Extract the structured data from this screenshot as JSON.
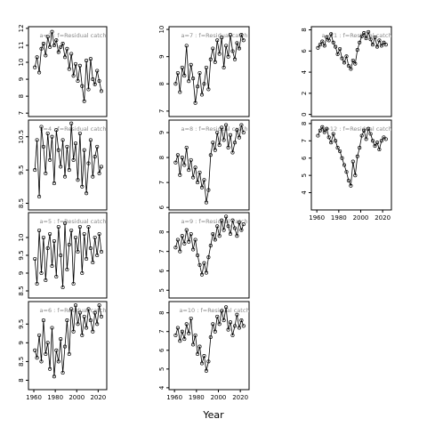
{
  "figure": {
    "xlabel": "Year"
  },
  "chart_data": [
    {
      "type": "line",
      "title": "a=3 : f=Residual catch",
      "ylim": [
        6.8,
        12.1
      ],
      "yticks": [
        7,
        8,
        9,
        10,
        11,
        12
      ],
      "xticks": [],
      "x": [
        1961,
        1963,
        1965,
        1967,
        1969,
        1971,
        1973,
        1975,
        1977,
        1979,
        1981,
        1983,
        1985,
        1987,
        1989,
        1991,
        1993,
        1995,
        1997,
        1999,
        2001,
        2003,
        2005,
        2007,
        2009,
        2011,
        2013,
        2015,
        2017,
        2019,
        2021,
        2023
      ],
      "values": [
        9.7,
        10.3,
        9.4,
        10.8,
        11.1,
        10.4,
        11.5,
        10.9,
        11.8,
        11.0,
        11.3,
        10.6,
        10.9,
        11.1,
        10.3,
        10.8,
        9.6,
        10.5,
        9.2,
        9.9,
        8.9,
        9.8,
        8.6,
        7.7,
        10.1,
        8.4,
        10.2,
        9.0,
        8.7,
        9.5,
        8.9,
        8.3
      ]
    },
    {
      "type": "line",
      "title": "a=4 : f=Residual catch",
      "ylim": [
        8.3,
        11.0
      ],
      "yticks": [
        8.5,
        9.5,
        10.5
      ],
      "xticks": [],
      "x": [
        1961,
        1963,
        1965,
        1967,
        1969,
        1971,
        1973,
        1975,
        1977,
        1979,
        1981,
        1983,
        1985,
        1987,
        1989,
        1991,
        1993,
        1995,
        1997,
        1999,
        2001,
        2003,
        2005,
        2007,
        2009,
        2011,
        2013,
        2015,
        2017,
        2019,
        2021,
        2023
      ],
      "values": [
        9.5,
        10.4,
        8.7,
        10.8,
        10.2,
        9.4,
        10.6,
        9.8,
        10.5,
        9.1,
        10.7,
        10.1,
        9.6,
        10.4,
        9.3,
        10.2,
        9.5,
        10.9,
        9.8,
        10.3,
        9.2,
        10.6,
        9.0,
        10.1,
        8.8,
        9.7,
        10.4,
        9.3,
        9.9,
        10.2,
        9.4,
        9.6
      ]
    },
    {
      "type": "line",
      "title": "a=5 : f=Residual catch",
      "ylim": [
        8.3,
        10.7
      ],
      "yticks": [
        8.5,
        9.0,
        9.5,
        10.0
      ],
      "xticks": [],
      "x": [
        1961,
        1963,
        1965,
        1967,
        1969,
        1971,
        1973,
        1975,
        1977,
        1979,
        1981,
        1983,
        1985,
        1987,
        1989,
        1991,
        1993,
        1995,
        1997,
        1999,
        2001,
        2003,
        2005,
        2007,
        2009,
        2011,
        2013,
        2015,
        2017,
        2019,
        2021,
        2023
      ],
      "values": [
        9.4,
        8.7,
        10.2,
        9.0,
        10.0,
        8.8,
        9.7,
        10.1,
        9.2,
        9.9,
        8.9,
        10.3,
        9.5,
        8.6,
        10.4,
        9.1,
        9.8,
        10.2,
        8.7,
        10.0,
        9.6,
        10.3,
        9.0,
        10.1,
        9.4,
        10.3,
        9.7,
        9.3,
        10.0,
        9.5,
        10.1,
        9.6
      ]
    },
    {
      "type": "line",
      "title": "a=6 : f=Residual catch",
      "ylim": [
        7.75,
        10.1
      ],
      "yticks": [
        8.0,
        8.5,
        9.0,
        9.5
      ],
      "xticks": [
        1960,
        1980,
        2000,
        2020
      ],
      "x": [
        1961,
        1963,
        1965,
        1967,
        1969,
        1971,
        1973,
        1975,
        1977,
        1979,
        1981,
        1983,
        1985,
        1987,
        1989,
        1991,
        1993,
        1995,
        1997,
        1999,
        2001,
        2003,
        2005,
        2007,
        2009,
        2011,
        2013,
        2015,
        2017,
        2019,
        2021,
        2023
      ],
      "values": [
        8.8,
        8.6,
        9.2,
        8.5,
        9.6,
        8.7,
        9.0,
        8.3,
        9.4,
        8.1,
        8.8,
        8.5,
        9.1,
        8.2,
        8.9,
        9.6,
        8.7,
        9.9,
        9.3,
        10.0,
        9.5,
        9.8,
        9.2,
        9.7,
        9.4,
        9.9,
        9.6,
        9.3,
        9.8,
        9.5,
        10.0,
        9.7
      ]
    },
    {
      "type": "line",
      "title": "a=7 : f=Residual catch",
      "ylim": [
        6.8,
        10.1
      ],
      "yticks": [
        7.0,
        8.0,
        9.0,
        10.0
      ],
      "xticks": [],
      "x": [
        1961,
        1963,
        1965,
        1967,
        1969,
        1971,
        1973,
        1975,
        1977,
        1979,
        1981,
        1983,
        1985,
        1987,
        1989,
        1991,
        1993,
        1995,
        1997,
        1999,
        2001,
        2003,
        2005,
        2007,
        2009,
        2011,
        2013,
        2015,
        2017,
        2019,
        2021,
        2023
      ],
      "values": [
        8.0,
        8.4,
        7.7,
        8.6,
        8.3,
        9.4,
        8.1,
        8.7,
        8.2,
        7.3,
        7.9,
        8.4,
        7.6,
        8.0,
        8.6,
        7.8,
        8.9,
        9.3,
        8.8,
        9.6,
        9.1,
        9.7,
        8.6,
        9.4,
        9.0,
        9.8,
        9.2,
        8.9,
        9.5,
        9.3,
        9.8,
        9.6
      ]
    },
    {
      "type": "line",
      "title": "a=8 : f=Residual catch",
      "ylim": [
        5.9,
        9.5
      ],
      "yticks": [
        6.0,
        7.0,
        8.0,
        9.0
      ],
      "xticks": [],
      "x": [
        1961,
        1963,
        1965,
        1967,
        1969,
        1971,
        1973,
        1975,
        1977,
        1979,
        1981,
        1983,
        1985,
        1987,
        1989,
        1991,
        1993,
        1995,
        1997,
        1999,
        2001,
        2003,
        2005,
        2007,
        2009,
        2011,
        2013,
        2015,
        2017,
        2019,
        2021,
        2023
      ],
      "values": [
        7.8,
        8.1,
        7.3,
        8.0,
        7.7,
        8.4,
        7.5,
        7.9,
        7.2,
        7.6,
        7.0,
        7.4,
        6.8,
        7.1,
        6.2,
        6.7,
        8.1,
        8.6,
        8.3,
        9.0,
        8.5,
        9.2,
        8.7,
        9.3,
        8.4,
        8.9,
        8.2,
        8.6,
        9.1,
        8.8,
        9.3,
        9.0
      ]
    },
    {
      "type": "line",
      "title": "a=9 : f=Residual catch",
      "ylim": [
        4.6,
        9.0
      ],
      "yticks": [
        5,
        6,
        7,
        8
      ],
      "xticks": [],
      "x": [
        1961,
        1963,
        1965,
        1967,
        1969,
        1971,
        1973,
        1975,
        1977,
        1979,
        1981,
        1983,
        1985,
        1987,
        1989,
        1991,
        1993,
        1995,
        1997,
        1999,
        2001,
        2003,
        2005,
        2007,
        2009,
        2011,
        2013,
        2015,
        2017,
        2019,
        2021,
        2023
      ],
      "values": [
        7.2,
        7.6,
        7.0,
        7.8,
        7.4,
        8.1,
        7.5,
        7.9,
        7.1,
        7.6,
        6.8,
        6.3,
        5.8,
        6.4,
        5.9,
        6.7,
        7.3,
        7.9,
        7.6,
        8.3,
        7.8,
        8.6,
        8.1,
        8.8,
        8.3,
        7.9,
        8.6,
        8.2,
        7.8,
        8.5,
        8.1,
        8.4
      ]
    },
    {
      "type": "line",
      "title": "a=10 : f=Residual catch",
      "ylim": [
        3.9,
        8.6
      ],
      "yticks": [
        4,
        5,
        6,
        7,
        8
      ],
      "xticks": [
        1960,
        1980,
        2000,
        2020
      ],
      "x": [
        1961,
        1963,
        1965,
        1967,
        1969,
        1971,
        1973,
        1975,
        1977,
        1979,
        1981,
        1983,
        1985,
        1987,
        1989,
        1991,
        1993,
        1995,
        1997,
        1999,
        2001,
        2003,
        2005,
        2007,
        2009,
        2011,
        2013,
        2015,
        2017,
        2019,
        2021,
        2023
      ],
      "values": [
        6.8,
        7.2,
        6.5,
        7.0,
        6.6,
        7.4,
        6.9,
        7.7,
        6.3,
        6.8,
        5.8,
        6.2,
        5.3,
        5.7,
        4.9,
        5.4,
        6.7,
        7.4,
        7.0,
        7.8,
        7.4,
        8.1,
        7.6,
        8.3,
        7.1,
        7.5,
        6.8,
        7.3,
        7.9,
        7.2,
        7.6,
        7.3
      ]
    },
    {
      "type": "line",
      "title": "a=11 : f=Residual catch",
      "ylim": [
        -0.2,
        8.3
      ],
      "yticks": [
        0,
        2,
        4,
        6,
        8
      ],
      "xticks": [],
      "x": [
        1961,
        1963,
        1965,
        1967,
        1969,
        1971,
        1973,
        1975,
        1977,
        1979,
        1981,
        1983,
        1985,
        1987,
        1989,
        1991,
        1993,
        1995,
        1997,
        1999,
        2001,
        2003,
        2005,
        2007,
        2009,
        2011,
        2013,
        2015,
        2017,
        2019,
        2021,
        2023
      ],
      "values": [
        6.3,
        6.6,
        6.9,
        6.5,
        7.3,
        7.0,
        7.6,
        6.8,
        6.4,
        5.7,
        6.2,
        5.3,
        4.9,
        5.5,
        4.6,
        4.3,
        5.1,
        4.8,
        6.1,
        6.8,
        7.4,
        7.7,
        7.2,
        7.8,
        7.1,
        6.6,
        7.3,
        6.4,
        7.0,
        6.5,
        6.8,
        6.6
      ]
    },
    {
      "type": "line",
      "title": "a=12 : f=Residual catch",
      "ylim": [
        3.0,
        8.2
      ],
      "yticks": [
        4,
        5,
        6,
        7,
        8
      ],
      "xticks": [
        1960,
        1980,
        2000,
        2020
      ],
      "x": [
        1961,
        1963,
        1965,
        1967,
        1969,
        1971,
        1973,
        1975,
        1977,
        1979,
        1981,
        1983,
        1985,
        1987,
        1989,
        1991,
        1993,
        1995,
        1997,
        1999,
        2001,
        2003,
        2005,
        2007,
        2009,
        2011,
        2013,
        2015,
        2017,
        2019,
        2021,
        2023
      ],
      "values": [
        7.3,
        7.6,
        7.8,
        7.5,
        7.7,
        7.2,
        6.9,
        7.4,
        7.0,
        6.6,
        6.4,
        6.0,
        5.6,
        5.2,
        4.7,
        4.4,
        5.8,
        5.0,
        6.1,
        6.6,
        7.3,
        7.6,
        7.1,
        7.7,
        7.4,
        7.0,
        6.7,
        6.9,
        6.5,
        7.0,
        7.2,
        7.1
      ]
    }
  ]
}
